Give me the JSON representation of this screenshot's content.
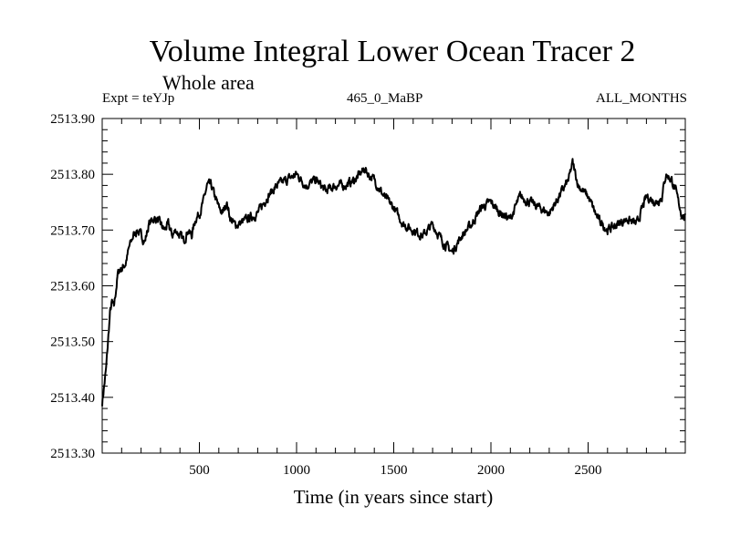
{
  "header": {
    "title": "Volume Integral Lower Ocean Tracer 2",
    "subtitle": "Whole area",
    "experiment": "Expt = teYJp",
    "period": "465_0_MaBP",
    "months": "ALL_MONTHS"
  },
  "chart_data": {
    "type": "line",
    "title": "Volume Integral Lower Ocean Tracer 2",
    "subtitle": "Whole area",
    "xlabel": "Time (in years since start)",
    "ylabel": "",
    "xlim": [
      0,
      3000
    ],
    "ylim": [
      2513.3,
      2513.9
    ],
    "x_ticks": [
      500,
      1000,
      1500,
      2000,
      2500
    ],
    "x_tick_labels": [
      "500",
      "1000",
      "1500",
      "2000",
      "2500"
    ],
    "y_ticks": [
      2513.3,
      2513.4,
      2513.5,
      2513.6,
      2513.7,
      2513.8,
      2513.9
    ],
    "y_tick_labels": [
      "2513.30",
      "2513.40",
      "2513.50",
      "2513.60",
      "2513.70",
      "2513.80",
      "2513.90"
    ],
    "series": [
      {
        "name": "Lower Ocean Tracer 2",
        "color": "#000000",
        "x": [
          0,
          10,
          20,
          30,
          40,
          50,
          60,
          70,
          80,
          90,
          100,
          120,
          140,
          160,
          180,
          200,
          220,
          240,
          260,
          280,
          300,
          320,
          340,
          360,
          380,
          400,
          420,
          440,
          460,
          480,
          500,
          520,
          540,
          560,
          580,
          600,
          620,
          640,
          660,
          680,
          700,
          750,
          800,
          850,
          900,
          950,
          1000,
          1050,
          1100,
          1150,
          1200,
          1250,
          1300,
          1350,
          1370,
          1400,
          1450,
          1500,
          1550,
          1600,
          1650,
          1700,
          1750,
          1800,
          1850,
          1900,
          1950,
          2000,
          2050,
          2100,
          2150,
          2200,
          2250,
          2300,
          2350,
          2400,
          2420,
          2450,
          2500,
          2550,
          2600,
          2650,
          2700,
          2750,
          2800,
          2850,
          2880,
          2900,
          2930,
          2950,
          2980,
          3000
        ],
        "values": [
          2513.39,
          2513.42,
          2513.45,
          2513.5,
          2513.55,
          2513.57,
          2513.56,
          2513.59,
          2513.62,
          2513.63,
          2513.63,
          2513.64,
          2513.67,
          2513.69,
          2513.7,
          2513.69,
          2513.68,
          2513.71,
          2513.72,
          2513.72,
          2513.71,
          2513.7,
          2513.71,
          2513.69,
          2513.7,
          2513.69,
          2513.68,
          2513.7,
          2513.69,
          2513.72,
          2513.73,
          2513.75,
          2513.78,
          2513.78,
          2513.76,
          2513.74,
          2513.73,
          2513.75,
          2513.72,
          2513.71,
          2513.71,
          2513.72,
          2513.73,
          2513.76,
          2513.78,
          2513.79,
          2513.8,
          2513.78,
          2513.79,
          2513.77,
          2513.78,
          2513.78,
          2513.79,
          2513.81,
          2513.8,
          2513.79,
          2513.76,
          2513.74,
          2513.71,
          2513.7,
          2513.69,
          2513.71,
          2513.68,
          2513.66,
          2513.69,
          2513.71,
          2513.74,
          2513.75,
          2513.73,
          2513.72,
          2513.76,
          2513.75,
          2513.74,
          2513.73,
          2513.76,
          2513.79,
          2513.82,
          2513.78,
          2513.76,
          2513.72,
          2513.7,
          2513.71,
          2513.72,
          2513.71,
          2513.76,
          2513.75,
          2513.76,
          2513.8,
          2513.79,
          2513.77,
          2513.73,
          2513.72
        ]
      }
    ]
  }
}
